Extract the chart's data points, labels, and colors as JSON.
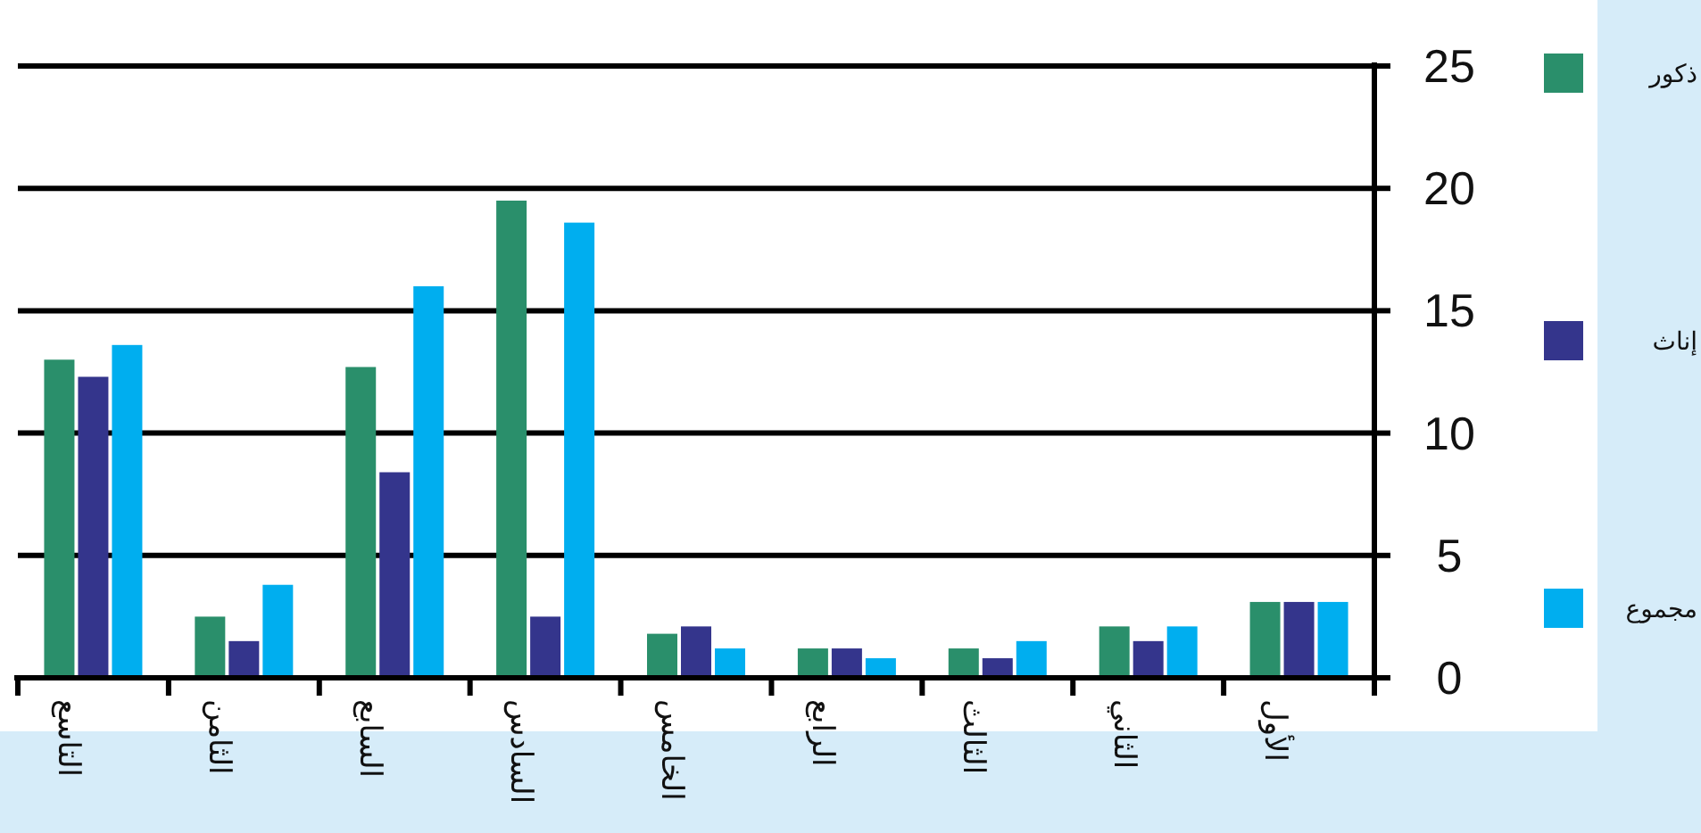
{
  "chart_data": {
    "type": "bar",
    "categories": [
      "التاسع",
      "الثامن",
      "السابع",
      "السادس",
      "الخامس",
      "الرابع",
      "الثالث",
      "الثاني",
      "الأول"
    ],
    "series": [
      {
        "name": "ذكور",
        "color": "#2a8f6b",
        "values": [
          13,
          2.5,
          12.7,
          19.5,
          1.8,
          1.2,
          1.2,
          2.1,
          3.1
        ]
      },
      {
        "name": "إناث",
        "color": "#34358c",
        "values": [
          12.3,
          1.5,
          8.4,
          2.5,
          2.1,
          1.2,
          0.8,
          1.5,
          3.1
        ]
      },
      {
        "name": "مجموع",
        "color": "#00aeef",
        "values": [
          13.6,
          3.8,
          16.0,
          18.6,
          1.2,
          0.8,
          1.5,
          2.1,
          3.1
        ]
      }
    ],
    "ylim": [
      0,
      25
    ],
    "yticks": [
      0,
      5,
      10,
      15,
      20,
      25
    ],
    "grid": "y",
    "legend": "right"
  }
}
